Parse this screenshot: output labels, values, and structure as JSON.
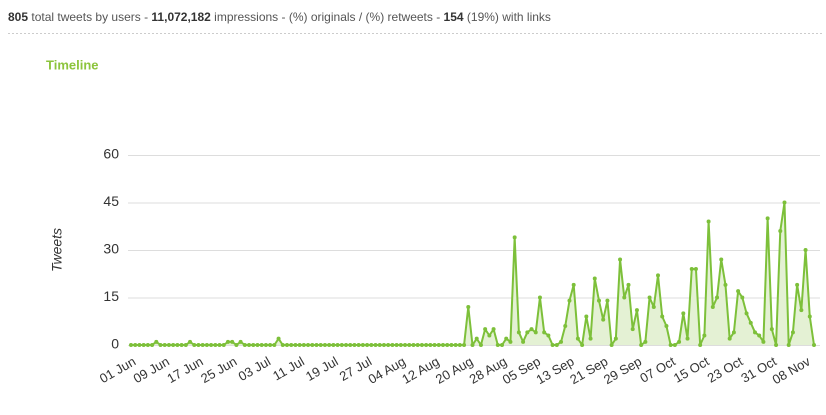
{
  "header": {
    "segments": [
      {
        "text": "805",
        "bold": true
      },
      {
        "text": " total tweets by users - ",
        "bold": false
      },
      {
        "text": "11,072,182",
        "bold": true
      },
      {
        "text": " impressions - (%) originals / (%) retweets - ",
        "bold": false
      },
      {
        "text": "154",
        "bold": true
      },
      {
        "text": " (19%) with links",
        "bold": false
      }
    ]
  },
  "chart_data": {
    "type": "area-line",
    "title": "Timeline",
    "y_label": "Tweets",
    "color": "#7dc03a",
    "fill": "#e4f1d4",
    "grid": true,
    "ylim": [
      0,
      60
    ],
    "yticks": [
      0,
      15,
      30,
      45,
      60
    ],
    "categories": [
      "01 Jun",
      null,
      null,
      null,
      null,
      null,
      null,
      null,
      "09 Jun",
      null,
      null,
      null,
      null,
      null,
      null,
      null,
      "17 Jun",
      null,
      null,
      null,
      null,
      null,
      null,
      null,
      "25 Jun",
      null,
      null,
      null,
      null,
      null,
      null,
      null,
      "03 Jul",
      null,
      null,
      null,
      null,
      null,
      null,
      null,
      "11 Jul",
      null,
      null,
      null,
      null,
      null,
      null,
      null,
      "19 Jul",
      null,
      null,
      null,
      null,
      null,
      null,
      null,
      "27 Jul",
      null,
      null,
      null,
      null,
      null,
      null,
      null,
      "04 Aug",
      null,
      null,
      null,
      null,
      null,
      null,
      null,
      "12 Aug",
      null,
      null,
      null,
      null,
      null,
      null,
      null,
      "20 Aug",
      null,
      null,
      null,
      null,
      null,
      null,
      null,
      "28 Aug",
      null,
      null,
      null,
      null,
      null,
      null,
      null,
      "05 Sep",
      null,
      null,
      null,
      null,
      null,
      null,
      null,
      "13 Sep",
      null,
      null,
      null,
      null,
      null,
      null,
      null,
      "21 Sep",
      null,
      null,
      null,
      null,
      null,
      null,
      null,
      "29 Sep",
      null,
      null,
      null,
      null,
      null,
      null,
      null,
      "07 Oct",
      null,
      null,
      null,
      null,
      null,
      null,
      null,
      "15 Oct",
      null,
      null,
      null,
      null,
      null,
      null,
      null,
      "23 Oct",
      null,
      null,
      null,
      null,
      null,
      null,
      null,
      "31 Oct",
      null,
      null,
      null,
      null,
      null,
      null,
      null,
      "08 Nov",
      null,
      null
    ],
    "values": [
      0,
      0,
      0,
      0,
      0,
      0,
      1,
      0,
      0,
      0,
      0,
      0,
      0,
      0,
      1,
      0,
      0,
      0,
      0,
      0,
      0,
      0,
      0,
      1,
      1,
      0,
      1,
      0,
      0,
      0,
      0,
      0,
      0,
      0,
      0,
      2,
      0,
      0,
      0,
      0,
      0,
      0,
      0,
      0,
      0,
      0,
      0,
      0,
      0,
      0,
      0,
      0,
      0,
      0,
      0,
      0,
      0,
      0,
      0,
      0,
      0,
      0,
      0,
      0,
      0,
      0,
      0,
      0,
      0,
      0,
      0,
      0,
      0,
      0,
      0,
      0,
      0,
      0,
      0,
      0,
      12,
      0,
      2,
      0,
      5,
      3,
      5,
      0,
      0,
      2,
      1,
      34,
      4,
      1,
      4,
      5,
      4,
      15,
      4,
      3,
      0,
      0,
      1,
      6,
      14,
      19,
      2,
      0,
      9,
      2,
      21,
      14,
      8,
      14,
      0,
      2,
      27,
      15,
      19,
      5,
      11,
      0,
      1,
      15,
      12,
      22,
      9,
      6,
      0,
      0,
      1,
      10,
      2,
      24,
      24,
      0,
      3,
      39,
      12,
      15,
      27,
      19,
      2,
      4,
      17,
      15,
      10,
      7,
      4,
      3,
      1,
      40,
      5,
      0,
      36,
      45,
      0,
      4,
      19,
      11,
      30,
      9,
      0
    ]
  }
}
